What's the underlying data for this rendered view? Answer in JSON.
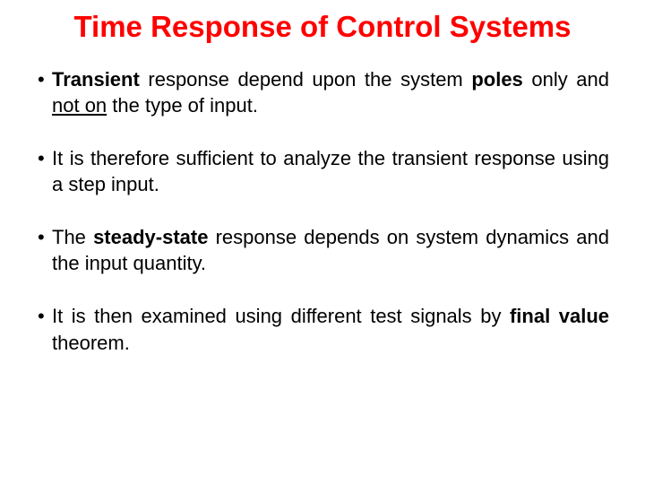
{
  "title": {
    "text": "Time Response of Control Systems",
    "color": "#ff0000",
    "fontsize": 33
  },
  "body": {
    "fontsize": 22,
    "color": "#000000"
  },
  "bullets": [
    {
      "p1_b": "Transient",
      "p2": " response depend upon the system ",
      "p3_b": "poles",
      "p4": " only and ",
      "p5_u": "not on",
      "p6": " the type of input."
    },
    {
      "text": "It is therefore sufficient to analyze the transient response using a step input."
    },
    {
      "p1": "The ",
      "p2_b": "steady-state",
      "p3": " response depends on system dynamics and the input quantity."
    },
    {
      "p1": "It is then examined using different test signals by ",
      "p2_b": "final value",
      "p3": " theorem."
    }
  ]
}
